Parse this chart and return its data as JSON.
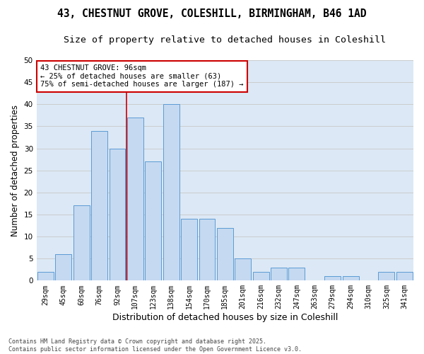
{
  "title1": "43, CHESTNUT GROVE, COLESHILL, BIRMINGHAM, B46 1AD",
  "title2": "Size of property relative to detached houses in Coleshill",
  "xlabel": "Distribution of detached houses by size in Coleshill",
  "ylabel": "Number of detached properties",
  "categories": [
    "29sqm",
    "45sqm",
    "60sqm",
    "76sqm",
    "92sqm",
    "107sqm",
    "123sqm",
    "138sqm",
    "154sqm",
    "170sqm",
    "185sqm",
    "201sqm",
    "216sqm",
    "232sqm",
    "247sqm",
    "263sqm",
    "279sqm",
    "294sqm",
    "310sqm",
    "325sqm",
    "341sqm"
  ],
  "values": [
    2,
    6,
    17,
    34,
    30,
    37,
    27,
    40,
    14,
    14,
    12,
    5,
    2,
    3,
    3,
    0,
    1,
    1,
    0,
    2,
    2
  ],
  "bar_color": "#c5d9f0",
  "bar_edge_color": "#5b9bd5",
  "annotation_text": "43 CHESTNUT GROVE: 96sqm\n← 25% of detached houses are smaller (63)\n75% of semi-detached houses are larger (187) →",
  "annotation_box_color": "#ffffff",
  "annotation_box_edge_color": "#cc0000",
  "ylim": [
    0,
    50
  ],
  "yticks": [
    0,
    5,
    10,
    15,
    20,
    25,
    30,
    35,
    40,
    45,
    50
  ],
  "grid_color": "#c8c8c8",
  "bg_color": "#dce8f5",
  "fig_bg_color": "#ffffff",
  "footer_text": "Contains HM Land Registry data © Crown copyright and database right 2025.\nContains public sector information licensed under the Open Government Licence v3.0.",
  "red_line_color": "#cc0000",
  "title_fontsize": 10.5,
  "subtitle_fontsize": 9.5,
  "tick_fontsize": 7,
  "ylabel_fontsize": 8.5,
  "xlabel_fontsize": 9,
  "footer_fontsize": 6,
  "annotation_fontsize": 7.5
}
